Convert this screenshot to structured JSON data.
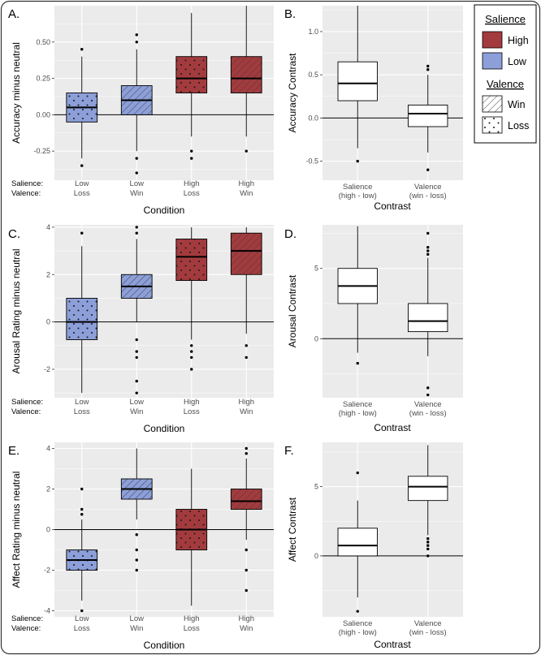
{
  "colors": {
    "high": "#a33b3e",
    "low": "#8c9fd9",
    "panel_bg": "#ebebeb",
    "grid": "#ffffff",
    "box_plain": "#ffffff"
  },
  "legend": {
    "salience_title": "Salience",
    "high_label": "High",
    "low_label": "Low",
    "valence_title": "Valence",
    "win_label": "Win",
    "loss_label": "Loss"
  },
  "chart_data": [
    {
      "id": "A",
      "panel_label": "A.",
      "type": "box",
      "ylabel": "Accuracy minus neutral",
      "xlabel": "Condition",
      "ylim": [
        -0.45,
        0.75
      ],
      "yticks": [
        {
          "v": -0.25,
          "t": "-0.25"
        },
        {
          "v": 0,
          "t": "0.00"
        },
        {
          "v": 0.25,
          "t": "0.25"
        },
        {
          "v": 0.5,
          "t": "0.50"
        }
      ],
      "row_labels": [
        "Salience:",
        "Valence:"
      ],
      "boxes": [
        {
          "l1": "Low",
          "l2": "Loss",
          "salience": "low",
          "valence": "loss",
          "min": -0.3,
          "q1": -0.05,
          "med": 0.05,
          "q3": 0.15,
          "max": 0.4,
          "outliers": [
            0.45,
            -0.35
          ]
        },
        {
          "l1": "Low",
          "l2": "Win",
          "salience": "low",
          "valence": "win",
          "min": -0.25,
          "q1": 0.0,
          "med": 0.1,
          "q3": 0.2,
          "max": 0.45,
          "outliers": [
            0.55,
            0.5,
            -0.3,
            -0.4
          ]
        },
        {
          "l1": "High",
          "l2": "Loss",
          "salience": "high",
          "valence": "loss",
          "min": -0.15,
          "q1": 0.15,
          "med": 0.25,
          "q3": 0.4,
          "max": 0.7,
          "outliers": [
            -0.25,
            -0.3
          ]
        },
        {
          "l1": "High",
          "l2": "Win",
          "salience": "high",
          "valence": "win",
          "min": -0.15,
          "q1": 0.15,
          "med": 0.25,
          "q3": 0.4,
          "max": 0.75,
          "outliers": [
            -0.25
          ]
        }
      ]
    },
    {
      "id": "B",
      "panel_label": "B.",
      "type": "box",
      "ylabel": "Accuracy Contrast",
      "xlabel": "Contrast",
      "ylim": [
        -0.72,
        1.3
      ],
      "yticks": [
        {
          "v": -0.5,
          "t": "-0.5"
        },
        {
          "v": 0,
          "t": "0.0"
        },
        {
          "v": 0.5,
          "t": "0.5"
        },
        {
          "v": 1.0,
          "t": "1.0"
        }
      ],
      "boxes": [
        {
          "l1": "Salience",
          "l2": "(high - low)",
          "salience": "none",
          "valence": "none",
          "min": -0.35,
          "q1": 0.2,
          "med": 0.4,
          "q3": 0.65,
          "max": 1.3,
          "outliers": [
            -0.5
          ]
        },
        {
          "l1": "Valence",
          "l2": "(win - loss)",
          "salience": "none",
          "valence": "none",
          "min": -0.4,
          "q1": -0.1,
          "med": 0.05,
          "q3": 0.15,
          "max": 0.5,
          "outliers": [
            0.6,
            0.56,
            -0.6
          ]
        }
      ]
    },
    {
      "id": "C",
      "panel_label": "C.",
      "type": "box",
      "ylabel": "Arousal Rating minus neutral",
      "xlabel": "Condition",
      "ylim": [
        -3.2,
        4.1
      ],
      "yticks": [
        {
          "v": -2,
          "t": "-2"
        },
        {
          "v": 0,
          "t": "0"
        },
        {
          "v": 2,
          "t": "2"
        },
        {
          "v": 4,
          "t": "4"
        }
      ],
      "row_labels": [
        "Salience:",
        "Valence:"
      ],
      "boxes": [
        {
          "l1": "Low",
          "l2": "Loss",
          "salience": "low",
          "valence": "loss",
          "min": -3.0,
          "q1": -0.75,
          "med": 0.0,
          "q3": 1.0,
          "max": 3.2,
          "outliers": [
            3.75
          ]
        },
        {
          "l1": "Low",
          "l2": "Win",
          "salience": "low",
          "valence": "win",
          "min": 0.0,
          "q1": 1.0,
          "med": 1.5,
          "q3": 2.0,
          "max": 3.5,
          "outliers": [
            4.0,
            3.75,
            -0.75,
            -1.25,
            -1.5,
            -2.5,
            -3.0
          ]
        },
        {
          "l1": "High",
          "l2": "Loss",
          "salience": "high",
          "valence": "loss",
          "min": -0.75,
          "q1": 1.75,
          "med": 2.75,
          "q3": 3.5,
          "max": 4.0,
          "outliers": [
            -1.0,
            -1.25,
            -1.5,
            -2.0
          ]
        },
        {
          "l1": "High",
          "l2": "Win",
          "salience": "high",
          "valence": "win",
          "min": -0.5,
          "q1": 2.0,
          "med": 3.0,
          "q3": 3.75,
          "max": 4.0,
          "outliers": [
            -1.0,
            -1.5
          ]
        }
      ]
    },
    {
      "id": "D",
      "panel_label": "D.",
      "type": "box",
      "ylabel": "Arousal Contrast",
      "xlabel": "Contrast",
      "ylim": [
        -4.2,
        8.1
      ],
      "yticks": [
        {
          "v": 0,
          "t": "0"
        },
        {
          "v": 5,
          "t": "5"
        }
      ],
      "boxes": [
        {
          "l1": "Salience",
          "l2": "(high - low)",
          "salience": "none",
          "valence": "none",
          "min": -1.0,
          "q1": 2.5,
          "med": 3.75,
          "q3": 5.0,
          "max": 8.0,
          "outliers": [
            -1.75
          ]
        },
        {
          "l1": "Valence",
          "l2": "(win - loss)",
          "salience": "none",
          "valence": "none",
          "min": -1.25,
          "q1": 0.5,
          "med": 1.25,
          "q3": 2.5,
          "max": 5.75,
          "outliers": [
            7.5,
            6.5,
            6.25,
            6.0,
            -3.5,
            -4.0
          ]
        }
      ]
    },
    {
      "id": "E",
      "panel_label": "E.",
      "type": "box",
      "ylabel": "Affect Rating minus neutral",
      "xlabel": "Condition",
      "ylim": [
        -4.3,
        4.3
      ],
      "yticks": [
        {
          "v": -4,
          "t": "-4"
        },
        {
          "v": -2,
          "t": "-2"
        },
        {
          "v": 0,
          "t": "0"
        },
        {
          "v": 2,
          "t": "2"
        },
        {
          "v": 4,
          "t": "4"
        }
      ],
      "row_labels": [
        "Salience:",
        "Valence:"
      ],
      "boxes": [
        {
          "l1": "Low",
          "l2": "Loss",
          "salience": "low",
          "valence": "loss",
          "min": -3.5,
          "q1": -2.0,
          "med": -1.5,
          "q3": -1.0,
          "max": 0.5,
          "outliers": [
            2.0,
            1.0,
            0.75,
            -4.0
          ]
        },
        {
          "l1": "Low",
          "l2": "Win",
          "salience": "low",
          "valence": "win",
          "min": 0.5,
          "q1": 1.5,
          "med": 2.0,
          "q3": 2.5,
          "max": 4.0,
          "outliers": [
            -0.25,
            -1.0,
            -1.5,
            -2.0
          ]
        },
        {
          "l1": "High",
          "l2": "Loss",
          "salience": "high",
          "valence": "loss",
          "min": -3.75,
          "q1": -1.0,
          "med": 0.0,
          "q3": 1.0,
          "max": 3.0,
          "outliers": []
        },
        {
          "l1": "High",
          "l2": "Win",
          "salience": "high",
          "valence": "win",
          "min": -0.5,
          "q1": 1.0,
          "med": 1.4,
          "q3": 2.0,
          "max": 3.5,
          "outliers": [
            4.0,
            3.75,
            -1.0,
            -2.0,
            -3.0
          ]
        }
      ]
    },
    {
      "id": "F",
      "panel_label": "F.",
      "type": "box",
      "ylabel": "Affect Contrast",
      "xlabel": "Contrast",
      "ylim": [
        -4.4,
        8.2
      ],
      "yticks": [
        {
          "v": 0,
          "t": "0"
        },
        {
          "v": 5,
          "t": "5"
        }
      ],
      "boxes": [
        {
          "l1": "Salience",
          "l2": "(high - low)",
          "salience": "none",
          "valence": "none",
          "min": -3.0,
          "q1": 0.0,
          "med": 0.75,
          "q3": 2.0,
          "max": 4.0,
          "outliers": [
            6.0,
            -4.0
          ]
        },
        {
          "l1": "Valence",
          "l2": "(win - loss)",
          "salience": "none",
          "valence": "none",
          "min": 1.5,
          "q1": 4.0,
          "med": 5.0,
          "q3": 5.75,
          "max": 8.0,
          "outliers": [
            1.25,
            1.0,
            0.75,
            0.5,
            0.0
          ]
        }
      ]
    }
  ]
}
